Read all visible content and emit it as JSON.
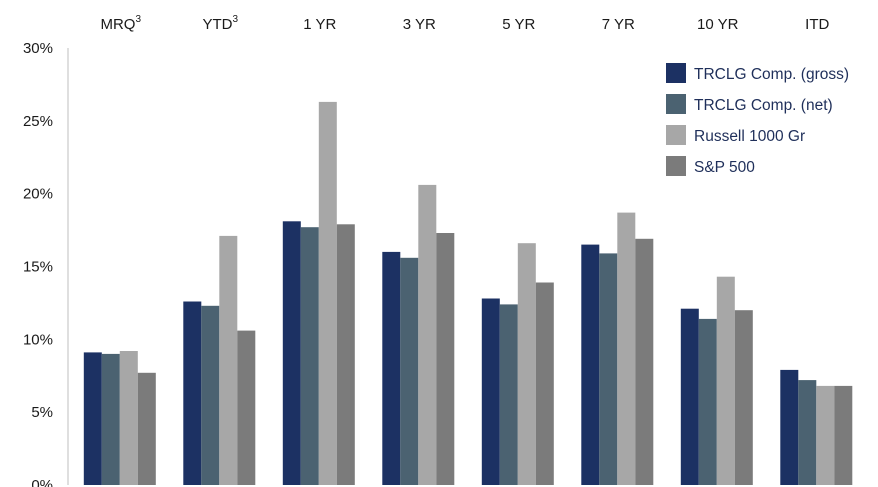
{
  "chart_data": {
    "type": "bar",
    "categories": [
      "MRQ",
      "YTD",
      "1 YR",
      "3 YR",
      "5 YR",
      "7 YR",
      "10 YR",
      "ITD"
    ],
    "category_superscripts": [
      "3",
      "3",
      "",
      "",
      "",
      "",
      "",
      ""
    ],
    "category_axis_position": "top",
    "y_ticks": [
      "0%",
      "5%",
      "10%",
      "15%",
      "20%",
      "25%",
      "30%"
    ],
    "ylim": [
      0,
      30
    ],
    "grid": false,
    "legend_position": "top-right",
    "series": [
      {
        "name": "TRCLG Comp. (gross)",
        "color": "#1c3163",
        "values": [
          9.1,
          12.6,
          18.1,
          16.0,
          12.8,
          16.5,
          12.1,
          7.9
        ]
      },
      {
        "name": "TRCLG Comp. (net)",
        "color": "#4b6271",
        "values": [
          9.0,
          12.3,
          17.7,
          15.6,
          12.4,
          15.9,
          11.4,
          7.2
        ]
      },
      {
        "name": "Russell 1000 Gr",
        "color": "#a7a7a7",
        "values": [
          9.2,
          17.1,
          26.3,
          20.6,
          16.6,
          18.7,
          14.3,
          6.8
        ]
      },
      {
        "name": "S&P 500",
        "color": "#7b7b7b",
        "values": [
          7.7,
          10.6,
          17.9,
          17.3,
          13.9,
          16.9,
          12.0,
          6.8
        ]
      }
    ]
  }
}
